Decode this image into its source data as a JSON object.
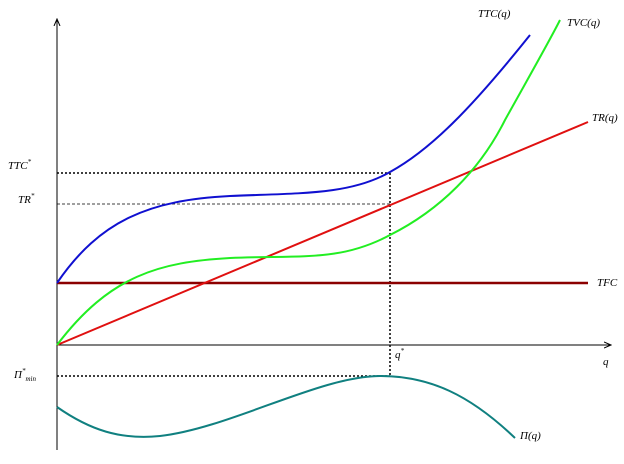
{
  "axes": {
    "x_label": "q",
    "y_label_top": ""
  },
  "curves": {
    "ttc": "TTC(q)",
    "tvc": "TVC(q)",
    "tr": "TR(q)",
    "tfc": "TFC",
    "profit": "Π(q)"
  },
  "markers": {
    "ttc_star": {
      "base": "TTC",
      "sup": "*"
    },
    "tr_star": {
      "base": "TR",
      "sup": "*"
    },
    "profit_min": {
      "base": "Π",
      "sup": "*",
      "sub": "min"
    },
    "q_star": {
      "base": "q",
      "sup": "*"
    }
  }
}
